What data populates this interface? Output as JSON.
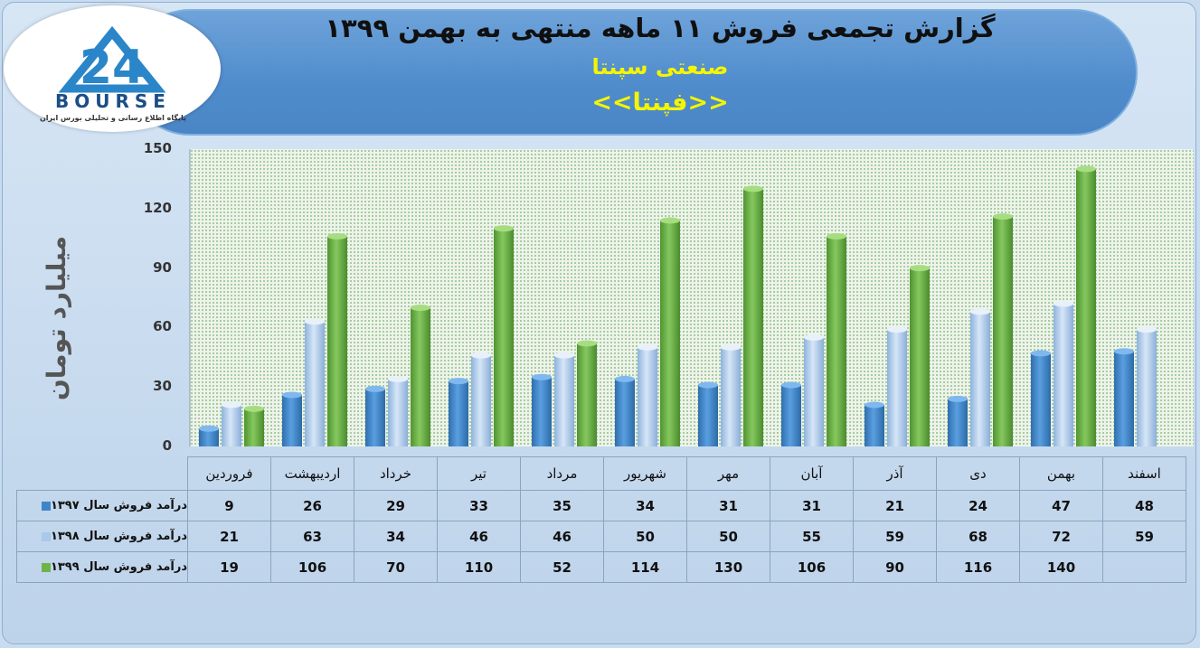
{
  "header": {
    "title": "گزارش تجمعی فروش ۱۱ ماهه منتهی به بهمن ۱۳۹۹",
    "industry": "صنعتی سپنتا",
    "symbol": "<<فپنتا>>"
  },
  "logo": {
    "word": "BOURSE",
    "subtitle": "پایگاه اطلاع رسانی و تحلیلی بورس ایران"
  },
  "chart_data": {
    "type": "bar",
    "ylabel": "میلیارد تومان",
    "ylim": [
      0,
      150
    ],
    "yticks": [
      "0",
      "30",
      "60",
      "90",
      "120",
      "150"
    ],
    "grid": false,
    "legend": "table-below",
    "categories": [
      "فروردین",
      "اردیبهشت",
      "خرداد",
      "تیر",
      "مرداد",
      "شهریور",
      "مهر",
      "آبان",
      "آذر",
      "دی",
      "بهمن",
      "اسفند"
    ],
    "series": [
      {
        "name": "درآمد فروش سال ۱۳۹۷",
        "color": "#3f86c9",
        "values": [
          9,
          26,
          29,
          33,
          35,
          34,
          31,
          31,
          21,
          24,
          47,
          48
        ],
        "labels": [
          "9",
          "26",
          "29",
          "33",
          "35",
          "34",
          "31",
          "31",
          "21",
          "24",
          "47",
          "48"
        ]
      },
      {
        "name": "درآمد فروش سال ۱۳۹۸",
        "color": "#a9c8ea",
        "values": [
          21,
          63,
          34,
          46,
          46,
          50,
          50,
          55,
          59,
          68,
          72,
          59
        ],
        "labels": [
          "21",
          "63",
          "34",
          "46",
          "46",
          "50",
          "50",
          "55",
          "59",
          "68",
          "72",
          "59"
        ]
      },
      {
        "name": "درآمد فروش سال ۱۳۹۹",
        "color": "#6fb34a",
        "values": [
          19,
          106,
          70,
          110,
          52,
          114,
          130,
          106,
          90,
          116,
          140,
          null
        ],
        "labels": [
          "19",
          "106",
          "70",
          "110",
          "52",
          "114",
          "130",
          "106",
          "90",
          "116",
          "140",
          ""
        ]
      }
    ]
  }
}
